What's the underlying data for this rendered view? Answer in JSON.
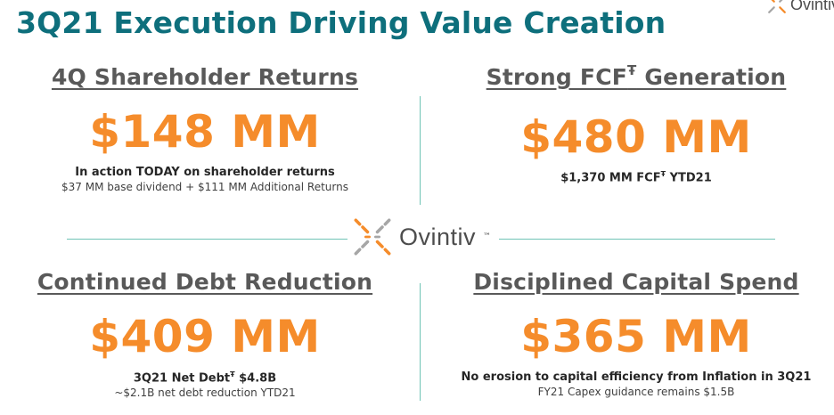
{
  "slide": {
    "title": "3Q21 Execution Driving Value Creation",
    "brand": {
      "name": "Ovintiv",
      "corner_name": "Ovintiv",
      "trademark": "™",
      "colors": {
        "orange": "#f58c2b",
        "gray": "#a6a6a6",
        "teal": "#0e6f7c"
      }
    },
    "quadrants": [
      {
        "heading": "4Q Shareholder Returns",
        "value": "$148 MM",
        "line1": "In action TODAY on shareholder returns",
        "line2": "$37 MM base dividend + $111 MM Additional Returns"
      },
      {
        "heading_main": "Strong FCF",
        "heading_sup": "Ŧ",
        "heading_rest": " Generation",
        "value": "$480 MM",
        "line1_pre": "$1,370 MM FCF",
        "line1_sup": "Ŧ",
        "line1_post": " YTD21"
      },
      {
        "heading": "Continued Debt Reduction",
        "value": "$409 MM",
        "line1_pre": "3Q21 Net Debt",
        "line1_sup": "Ŧ",
        "line1_post": " $4.8B",
        "line2": "~$2.1B net debt reduction YTD21"
      },
      {
        "heading": "Disciplined Capital Spend",
        "value": "$365 MM",
        "line1": "No erosion to capital efficiency from Inflation in 3Q21",
        "line2": "FY21 Capex guidance remains $1.5B"
      }
    ]
  }
}
